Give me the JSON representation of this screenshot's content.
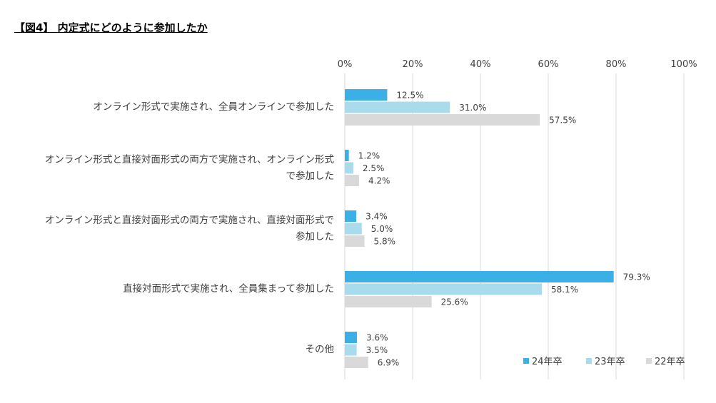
{
  "figure_title": "【図4】 内定式にどのように参加したか",
  "chart_data": {
    "type": "bar",
    "orientation": "horizontal",
    "categories": [
      "オンライン形式で実施され、全員オンラインで参加した",
      "オンライン形式と直接対面形式の両方で実施され、オンライン形式で参加した",
      "オンライン形式と直接対面形式の両方で実施され、直接対面形式で参加した",
      "直接対面形式で実施され、全員集まって参加した",
      "その他"
    ],
    "category_lines": [
      [
        "オンライン形式で実施され、全員オンラインで参加した"
      ],
      [
        "オンライン形式と直接対面形式の両方で実施され、オンライン形式",
        "で参加した"
      ],
      [
        "オンライン形式と直接対面形式の両方で実施され、直接対面形式で",
        "参加した"
      ],
      [
        "直接対面形式で実施され、全員集まって参加した"
      ],
      [
        "その他"
      ]
    ],
    "series": [
      {
        "name": "24年卒",
        "color": "#3bb0e6",
        "values": [
          12.5,
          1.2,
          3.4,
          79.3,
          3.6
        ],
        "labels": [
          "12.5%",
          "1.2%",
          "3.4%",
          "79.3%",
          "3.6%"
        ]
      },
      {
        "name": "23年卒",
        "color": "#a8dced",
        "values": [
          31.0,
          2.5,
          5.0,
          58.1,
          3.5
        ],
        "labels": [
          "31.0%",
          "2.5%",
          "5.0%",
          "58.1%",
          "3.5%"
        ]
      },
      {
        "name": "22年卒",
        "color": "#d9d9d9",
        "values": [
          57.5,
          4.2,
          5.8,
          25.6,
          6.9
        ],
        "labels": [
          "57.5%",
          "4.2%",
          "5.8%",
          "25.6%",
          "6.9%"
        ]
      }
    ],
    "xlim": [
      0,
      100
    ],
    "xticks": [
      "0%",
      "20%",
      "40%",
      "60%",
      "80%",
      "100%"
    ],
    "x_axis_position": "top",
    "grid": true,
    "legend_position": "bottom-right"
  }
}
